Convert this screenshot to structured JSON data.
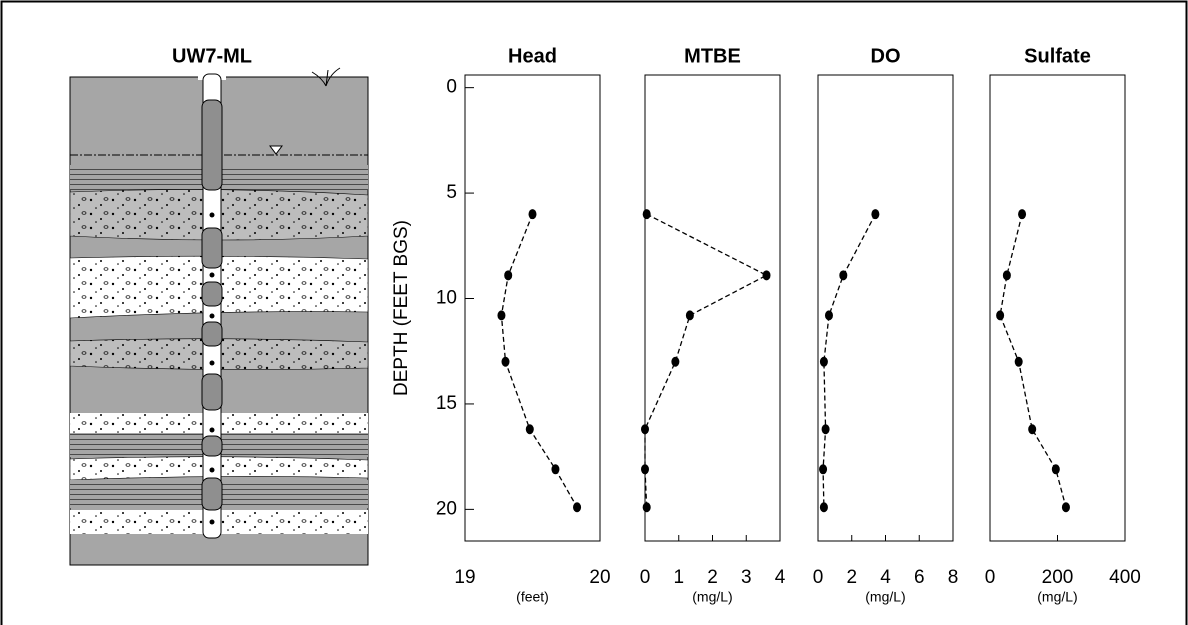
{
  "well": {
    "title": "UW7-ML"
  },
  "chart_data": [
    {
      "type": "line",
      "title": "Head",
      "xlabel": "(feet)",
      "ylabel": "DEPTH (FEET BGS)",
      "y": [
        6.0,
        8.9,
        10.8,
        13.0,
        16.2,
        18.1,
        19.9
      ],
      "values": [
        19.5,
        19.32,
        19.27,
        19.3,
        19.48,
        19.67,
        19.83
      ],
      "xlim": [
        19,
        20
      ],
      "xticks": [
        19,
        20
      ],
      "ylim": [
        -0.6,
        21.5
      ],
      "yticks": [
        0,
        5,
        10,
        15,
        20
      ],
      "color": "#000000"
    },
    {
      "type": "line",
      "title": "MTBE",
      "xlabel": "(mg/L)",
      "y": [
        6.0,
        8.9,
        10.8,
        13.0,
        16.2,
        18.1,
        19.9
      ],
      "values": [
        0.05,
        3.6,
        1.33,
        0.9,
        0,
        0,
        0.05
      ],
      "xlim": [
        0,
        4
      ],
      "xticks": [
        0,
        1,
        2,
        3,
        4
      ],
      "ylim": [
        -0.6,
        21.5
      ],
      "color": "#000000"
    },
    {
      "type": "line",
      "title": "DO",
      "xlabel": "(mg/L)",
      "y": [
        6.0,
        8.9,
        10.8,
        13.0,
        16.2,
        18.1,
        19.9
      ],
      "values": [
        3.4,
        1.5,
        0.65,
        0.35,
        0.45,
        0.3,
        0.35
      ],
      "xlim": [
        0,
        8
      ],
      "xticks": [
        0,
        2,
        4,
        6,
        8
      ],
      "ylim": [
        -0.6,
        21.5
      ],
      "color": "#000000"
    },
    {
      "type": "line",
      "title": "Sulfate",
      "xlabel": "(mg/L)",
      "y": [
        6.0,
        8.9,
        10.8,
        13.0,
        16.2,
        18.1,
        19.9
      ],
      "values": [
        95,
        50,
        30,
        85,
        125,
        195,
        225
      ],
      "xlim": [
        0,
        400
      ],
      "xticks": [
        0,
        200,
        400
      ],
      "ylim": [
        -0.6,
        21.5
      ],
      "color": "#000000"
    }
  ]
}
